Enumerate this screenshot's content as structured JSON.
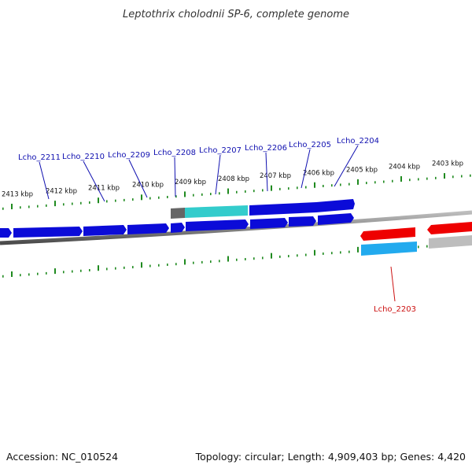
{
  "title": "Leptothrix cholodnii SP-6, complete genome",
  "footer": {
    "accession": "Accession: NC_010524",
    "topology": "Topology: circular; Length: 4,909,403 bp; Genes: 4,420"
  },
  "colors": {
    "forward_gene": "#0b0bd8",
    "highlight_gene": "#33cccc",
    "reverse_gene": "#ee0000",
    "reverse_cds": "#22aaee",
    "pseudo_gene": "#666666",
    "tick": "#1f8a1f",
    "backbone": "#888888",
    "label_forward": "#1010b0",
    "label_reverse": "#cc1111"
  },
  "scale": {
    "unit": "kbp",
    "labels": [
      "2413 kbp",
      "2412 kbp",
      "2411 kbp",
      "2410 kbp",
      "2409 kbp",
      "2408 kbp",
      "2407 kbp",
      "2406 kbp",
      "2405 kbp",
      "2404 kbp",
      "2403 kbp"
    ]
  },
  "gene_labels": [
    {
      "text": "Lcho_2211",
      "strand": "forward"
    },
    {
      "text": "Lcho_2210",
      "strand": "forward"
    },
    {
      "text": "Lcho_2209",
      "strand": "forward"
    },
    {
      "text": "Lcho_2208",
      "strand": "forward"
    },
    {
      "text": "Lcho_2207",
      "strand": "forward"
    },
    {
      "text": "Lcho_2206",
      "strand": "forward"
    },
    {
      "text": "Lcho_2205",
      "strand": "forward"
    },
    {
      "text": "Lcho_2204",
      "strand": "forward"
    },
    {
      "text": "Lcho_2203",
      "strand": "reverse"
    }
  ]
}
